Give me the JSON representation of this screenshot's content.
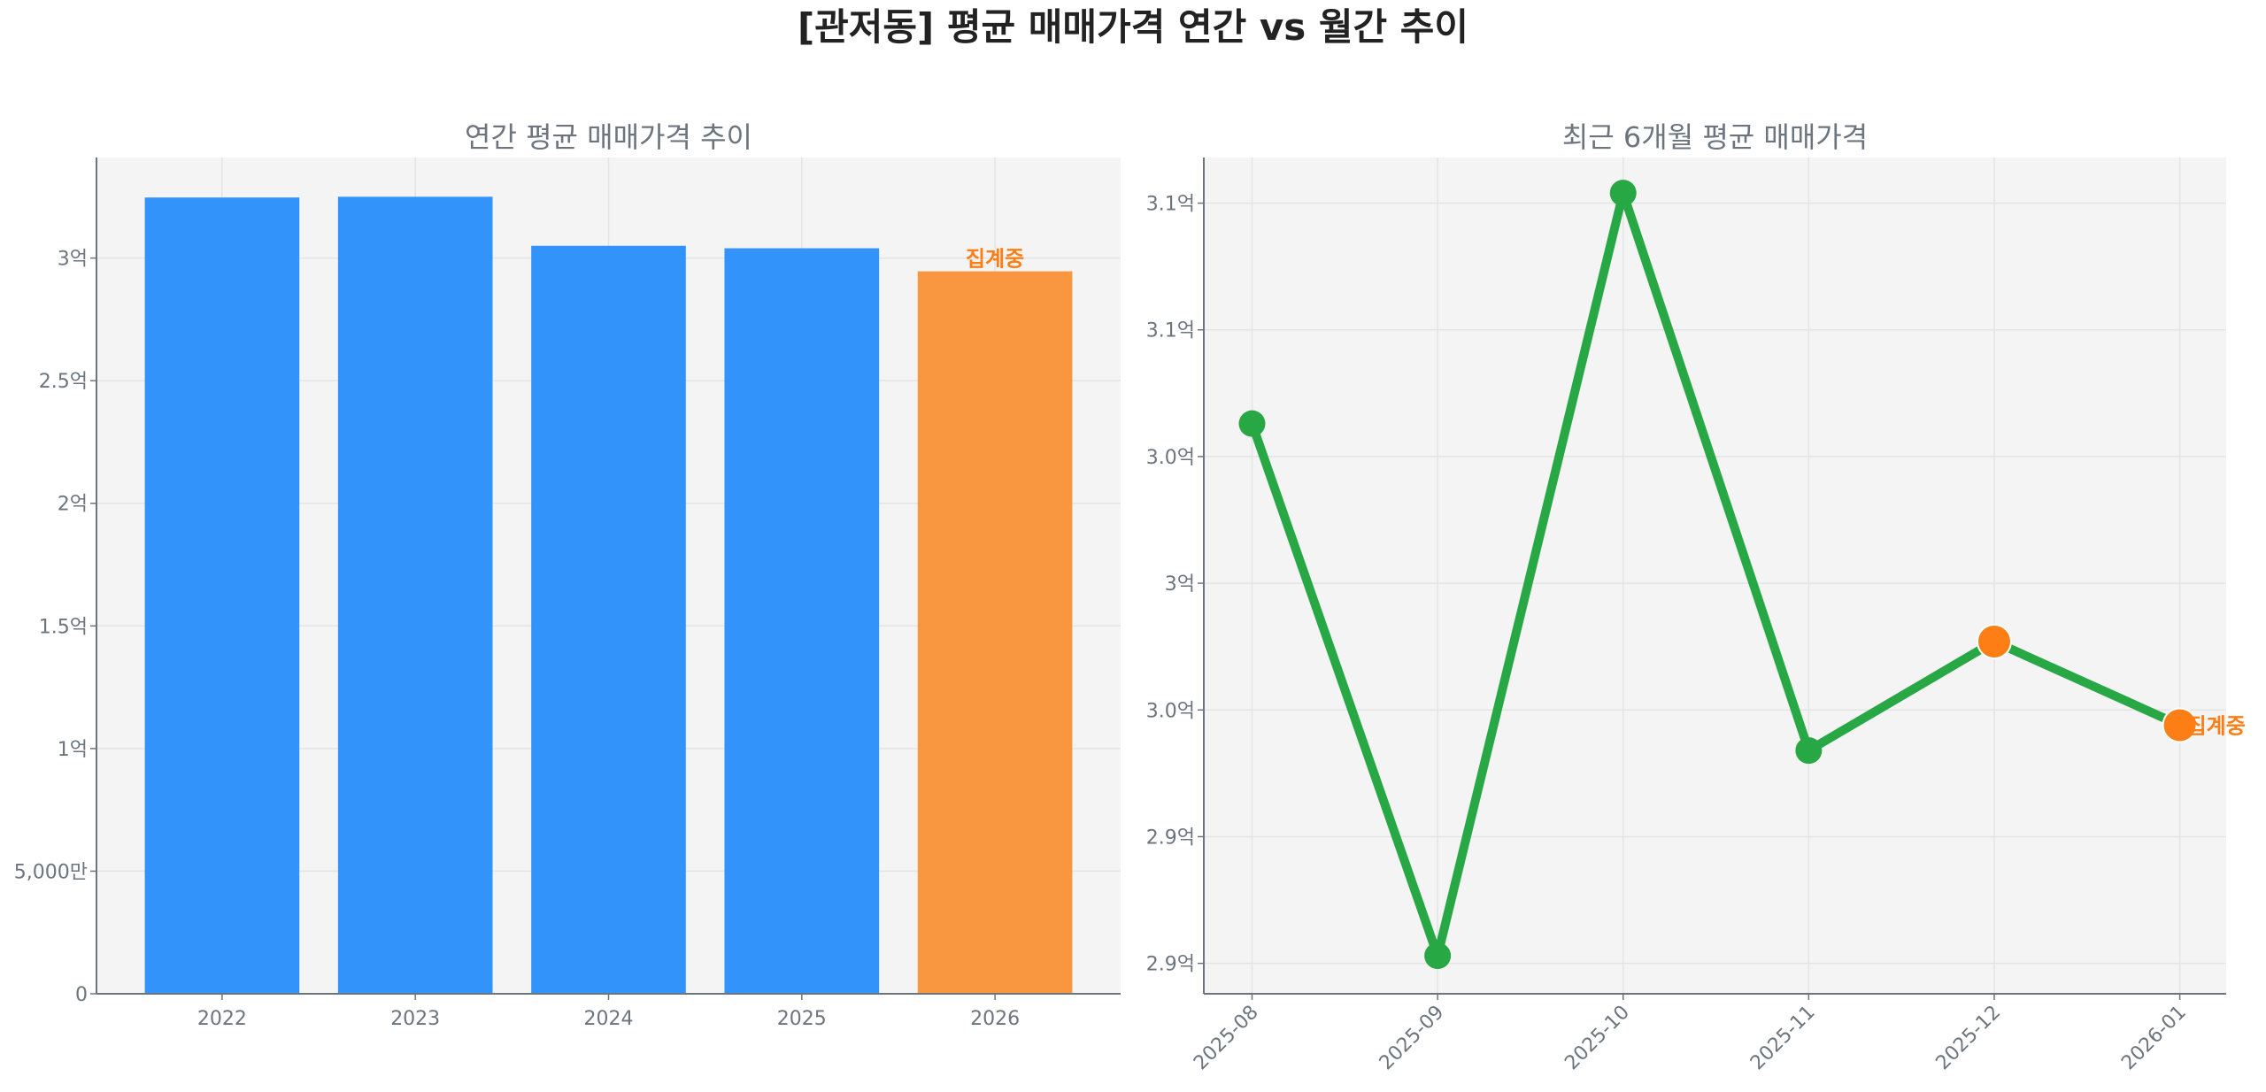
{
  "title": "[관저동] 평균 매매가격 연간 vs 월간 추이",
  "chart_data": [
    {
      "type": "bar",
      "title": "연간 평균 매매가격 추이",
      "categories": [
        "2022",
        "2023",
        "2024",
        "2025",
        "2026"
      ],
      "values": [
        324700000,
        325000000,
        305000000,
        304000000,
        294600000
      ],
      "unit": "원",
      "ylim": [
        0,
        341000000
      ],
      "yticks": [
        0,
        50000000,
        100000000,
        150000000,
        200000000,
        250000000,
        300000000
      ],
      "ytick_labels": [
        "0",
        "5,000만",
        "1억",
        "1.5억",
        "2억",
        "2.5억",
        "3억"
      ],
      "bar_colors": [
        "#3293fa",
        "#3293fa",
        "#3293fa",
        "#3293fa",
        "#f99640"
      ],
      "annotations": [
        {
          "category": "2026",
          "text": "집계중"
        }
      ],
      "grid": true
    },
    {
      "type": "line",
      "title": "최근 6개월 평균 매매가격",
      "categories": [
        "2025-08",
        "2025-09",
        "2025-10",
        "2025-11",
        "2025-12",
        "2026-01"
      ],
      "values": [
        306300000,
        285300000,
        315400000,
        293400000,
        297700000,
        294400000
      ],
      "unit": "원",
      "ylim": [
        283800000,
        316800000
      ],
      "yticks": [
        285000000,
        290000000,
        295000000,
        300000000,
        305000000,
        310000000,
        315000000
      ],
      "ytick_labels": [
        "2.9억",
        "2.9억",
        "3.0억",
        "3억",
        "3.0억",
        "3.1억",
        "3.1억"
      ],
      "line_color": "#28a745",
      "marker_colors": [
        "#28a745",
        "#28a745",
        "#28a745",
        "#28a745",
        "#fd7e14",
        "#fd7e14"
      ],
      "annotations": [
        {
          "category": "2026-01",
          "text": "집계중"
        }
      ],
      "grid": true
    }
  ]
}
